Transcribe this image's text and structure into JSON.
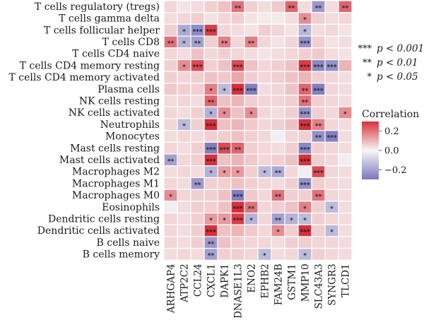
{
  "chart_data": {
    "type": "heatmap",
    "rows": [
      "T cells regulatory (tregs)",
      "T cells gamma delta",
      "T cells follicular helper",
      "T cells CD8",
      "T cells CD4 naive",
      "T cells CD4 memory resting",
      "T cells CD4 memory activated",
      "Plasma cells",
      "NK cells resting",
      "NK cells activated",
      "Neutrophils",
      "Monocytes",
      "Mast cells resting",
      "Mast cells activated",
      "Macrophages M2",
      "Macrophages M1",
      "Macrophages M0",
      "Eosinophils",
      "Dendritic cells resting",
      "Dendritic cells activated",
      "B cells naive",
      "B cells memory"
    ],
    "columns": [
      "ARHGAP4",
      "ATP2C2",
      "CCL24",
      "CXCL1",
      "DAPK1",
      "DNASE1L3",
      "ENO2",
      "EPHB2",
      "FAM24B",
      "GSTM1",
      "MMP10",
      "SLC43A3",
      "SYNGR3",
      "TLCD1"
    ],
    "values": [
      [
        0.05,
        0.03,
        0.04,
        0.06,
        0.08,
        0.2,
        0.06,
        0.04,
        0.07,
        0.22,
        0.04,
        -0.22,
        0.04,
        0.22
      ],
      [
        0.04,
        0.05,
        0.06,
        0.03,
        0.05,
        0.06,
        0.03,
        0.02,
        0.02,
        0.04,
        0.16,
        0.06,
        0.04,
        0.05
      ],
      [
        0.06,
        -0.18,
        -0.25,
        0.28,
        0.05,
        0.04,
        0.03,
        0.06,
        0.05,
        0.03,
        -0.15,
        0.04,
        0.05,
        0.03
      ],
      [
        0.2,
        -0.16,
        -0.2,
        0.06,
        0.18,
        0.05,
        0.18,
        0.05,
        0.03,
        0.05,
        -0.24,
        0.06,
        0.03,
        0.04
      ],
      [
        0.05,
        0.04,
        0.08,
        0.05,
        0.06,
        0.05,
        0.04,
        0.03,
        0.04,
        0.05,
        0.06,
        0.07,
        0.04,
        0.03
      ],
      [
        0.06,
        0.16,
        0.26,
        0.06,
        0.08,
        0.26,
        0.08,
        0.05,
        0.06,
        0.08,
        0.28,
        -0.26,
        -0.24,
        0.1
      ],
      [
        0.06,
        0.05,
        0.06,
        0.08,
        0.07,
        0.12,
        0.06,
        0.05,
        0.06,
        0.08,
        0.1,
        0.06,
        0.05,
        0.04
      ],
      [
        0.07,
        0.06,
        0.06,
        0.18,
        -0.14,
        0.3,
        -0.28,
        0.04,
        0.05,
        0.08,
        0.22,
        -0.28,
        0.05,
        0.04
      ],
      [
        0.04,
        0.05,
        0.04,
        0.22,
        0.08,
        0.1,
        0.06,
        0.05,
        0.05,
        0.06,
        0.2,
        0.06,
        0.05,
        0.04
      ],
      [
        0.05,
        0.04,
        0.06,
        -0.16,
        0.16,
        0.08,
        0.16,
        0.05,
        0.04,
        0.06,
        -0.24,
        0.06,
        0.05,
        0.16
      ],
      [
        0.05,
        -0.14,
        0.06,
        0.3,
        0.08,
        0.1,
        0.07,
        0.05,
        0.06,
        0.08,
        0.3,
        0.18,
        0.05,
        0.04
      ],
      [
        0.04,
        0.05,
        0.04,
        0.06,
        0.06,
        0.08,
        0.06,
        0.05,
        -0.02,
        0.05,
        0.06,
        -0.24,
        -0.28,
        0.04
      ],
      [
        0.05,
        0.04,
        0.06,
        -0.28,
        0.26,
        0.22,
        0.06,
        0.05,
        0.04,
        0.06,
        -0.26,
        0.06,
        0.05,
        0.04
      ],
      [
        -0.2,
        0.05,
        0.06,
        0.3,
        0.08,
        0.1,
        0.07,
        0.05,
        0.06,
        0.08,
        0.3,
        0.06,
        0.05,
        -0.02
      ],
      [
        0.04,
        0.05,
        0.04,
        -0.16,
        0.14,
        0.14,
        0.06,
        -0.14,
        -0.18,
        0.05,
        -0.02,
        0.26,
        0.05,
        0.04
      ],
      [
        0.05,
        0.04,
        -0.22,
        0.06,
        0.06,
        0.08,
        0.06,
        0.05,
        0.04,
        0.06,
        -0.24,
        0.06,
        0.05,
        0.04
      ],
      [
        0.16,
        0.05,
        0.06,
        0.06,
        0.08,
        -0.28,
        0.07,
        0.05,
        0.2,
        0.06,
        0.06,
        0.2,
        0.05,
        0.04
      ],
      [
        -0.02,
        0.04,
        0.06,
        0.06,
        0.08,
        0.3,
        0.2,
        0.05,
        0.06,
        0.08,
        0.18,
        0.06,
        -0.14,
        0.04
      ],
      [
        0.05,
        0.04,
        0.06,
        0.14,
        0.14,
        0.28,
        -0.16,
        0.05,
        -0.2,
        -0.16,
        -0.14,
        0.06,
        0.05,
        0.04
      ],
      [
        0.05,
        0.04,
        0.06,
        0.3,
        0.08,
        0.1,
        0.07,
        0.05,
        0.16,
        0.06,
        0.3,
        0.06,
        -0.14,
        0.04
      ],
      [
        0.05,
        0.04,
        0.06,
        -0.22,
        0.08,
        0.06,
        0.05,
        0.05,
        0.04,
        0.06,
        0.06,
        0.05,
        0.05,
        0.04
      ],
      [
        0.04,
        0.05,
        0.04,
        -0.2,
        0.06,
        0.06,
        0.05,
        -0.14,
        0.04,
        0.05,
        -0.14,
        0.06,
        0.05,
        0.04
      ]
    ],
    "significance": [
      [
        "",
        "",
        "",
        "",
        "",
        "**",
        "",
        "",
        "",
        "**",
        "",
        "**",
        "",
        "**"
      ],
      [
        "",
        "",
        "",
        "",
        "",
        "",
        "",
        "",
        "",
        "",
        "*",
        "",
        "",
        ""
      ],
      [
        "",
        "*",
        "***",
        "***",
        "",
        "",
        "",
        "",
        "",
        "",
        "*",
        "",
        "",
        ""
      ],
      [
        "**",
        "*",
        "**",
        "",
        "**",
        "",
        "**",
        "",
        "",
        "",
        "***",
        "",
        "",
        ""
      ],
      [
        "",
        "",
        "",
        "",
        "",
        "",
        "",
        "",
        "",
        "",
        "",
        "",
        "",
        ""
      ],
      [
        "",
        "*",
        "***",
        "",
        "",
        "***",
        "",
        "",
        "",
        "",
        "***",
        "***",
        "***",
        ""
      ],
      [
        "",
        "",
        "",
        "",
        "",
        "",
        "",
        "",
        "",
        "",
        "",
        "",
        "",
        ""
      ],
      [
        "",
        "",
        "",
        "*",
        "*",
        "***",
        "***",
        "",
        "",
        "",
        "**",
        "***",
        "",
        ""
      ],
      [
        "",
        "",
        "",
        "**",
        "",
        "",
        "",
        "",
        "",
        "",
        "**",
        "",
        "",
        ""
      ],
      [
        "",
        "",
        "",
        "*",
        "*",
        "",
        "*",
        "",
        "",
        "",
        "***",
        "",
        "",
        "*"
      ],
      [
        "",
        "*",
        "",
        "***",
        "",
        "",
        "",
        "",
        "",
        "",
        "***",
        "**",
        "",
        ""
      ],
      [
        "",
        "",
        "",
        "",
        "",
        "",
        "",
        "",
        "",
        "",
        "",
        "**",
        "***",
        ""
      ],
      [
        "",
        "",
        "",
        "***",
        "***",
        "**",
        "",
        "",
        "",
        "",
        "***",
        "",
        "",
        ""
      ],
      [
        "**",
        "",
        "",
        "***",
        "",
        "",
        "",
        "",
        "",
        "",
        "***",
        "",
        "",
        ""
      ],
      [
        "",
        "",
        "",
        "*",
        "*",
        "*",
        "",
        "*",
        "**",
        "",
        "",
        "***",
        "",
        ""
      ],
      [
        "",
        "",
        "**",
        "",
        "",
        "",
        "",
        "",
        "",
        "",
        "***",
        "",
        "",
        ""
      ],
      [
        "*",
        "",
        "",
        "",
        "",
        "***",
        "",
        "",
        "**",
        "",
        "",
        "**",
        "",
        ""
      ],
      [
        "",
        "",
        "",
        "",
        "",
        "***",
        "**",
        "",
        "",
        "",
        "*",
        "",
        "*",
        ""
      ],
      [
        "",
        "",
        "",
        "*",
        "*",
        "***",
        "*",
        "",
        "**",
        "*",
        "*",
        "",
        "",
        ""
      ],
      [
        "",
        "",
        "",
        "***",
        "",
        "",
        "",
        "",
        "*",
        "",
        "***",
        "",
        "*",
        ""
      ],
      [
        "",
        "",
        "",
        "**",
        "",
        "",
        "",
        "",
        "",
        "",
        "",
        "",
        "",
        ""
      ],
      [
        "",
        "",
        "",
        "**",
        "",
        "",
        "",
        "*",
        "",
        "",
        "*",
        "",
        "",
        ""
      ]
    ],
    "colorbar": {
      "title": "Correlation",
      "ticks": [
        "0.2",
        "0.0",
        "−0.2"
      ],
      "tick_values": [
        0.2,
        0.0,
        -0.2
      ],
      "range": [
        -0.3,
        0.3
      ],
      "high_color": "#d7303b",
      "mid_color": "#f7f7f7",
      "low_color": "#7b76bc"
    },
    "significance_legend": [
      {
        "stars": "***",
        "label": "p < 0.001"
      },
      {
        "stars": "**",
        "label": "p < 0.01"
      },
      {
        "stars": "*",
        "label": "p < 0.05"
      }
    ]
  }
}
